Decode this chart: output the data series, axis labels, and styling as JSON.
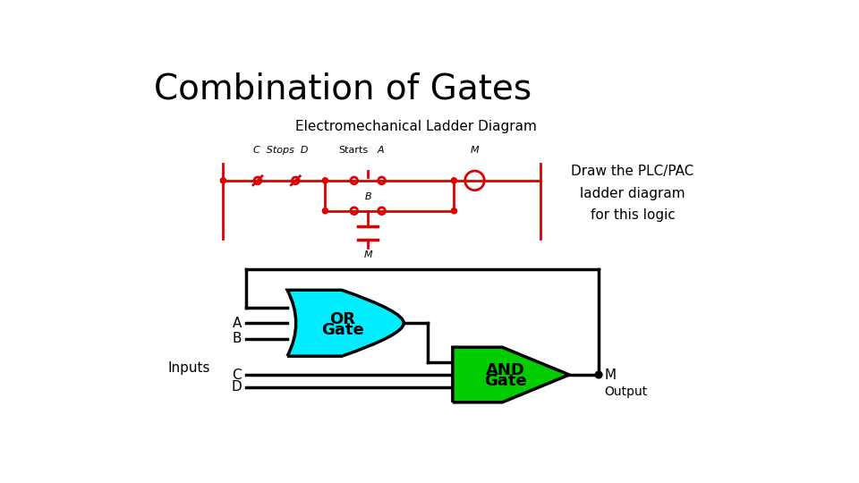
{
  "title": "Combination of Gates",
  "subtitle": "Electromechanical Ladder Diagram",
  "right_text": "Draw the PLC/PAC\nladder diagram\nfor this logic",
  "or_gate_color": "#00EEFF",
  "and_gate_color": "#00CC00",
  "ladder_color": "#DD0000",
  "line_color": "#000000",
  "bg_color": "#FFFFFF",
  "inputs_label": "Inputs",
  "output_label": "M",
  "output_sublabel": "Output"
}
